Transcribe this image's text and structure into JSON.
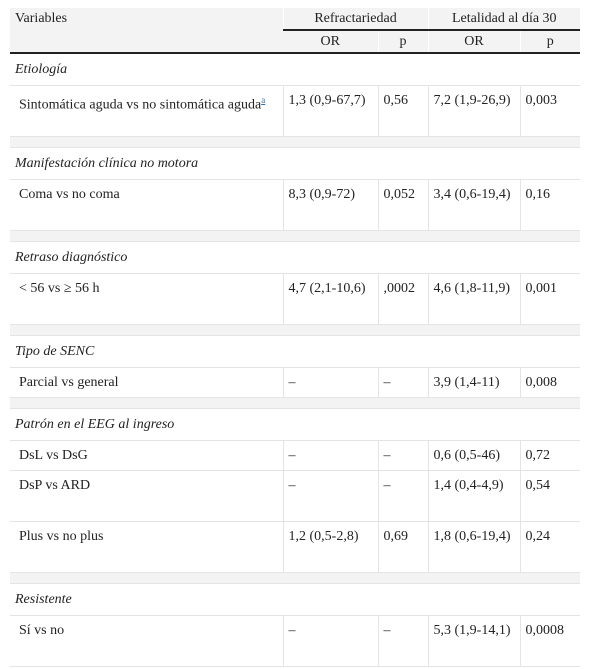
{
  "header": {
    "variables": "Variables",
    "refractariedad": "Refractariedad",
    "letalidad": "Letalidad al día 30",
    "sub": [
      "OR",
      "p",
      "OR",
      "p"
    ]
  },
  "sections": [
    {
      "title": "Etiología",
      "rows": [
        {
          "label": "Sintomática aguda vs no sintomática aguda",
          "note": "a",
          "cells": [
            "1,3 (0,9-67,7)",
            "0,56",
            "7,2 (1,9-26,9)",
            "0,003"
          ]
        }
      ]
    },
    {
      "title": "Manifestación clínica no motora",
      "rows": [
        {
          "label": "Coma vs no coma",
          "cells": [
            "8,3 (0,9-72)",
            "0,052",
            "3,4 (0,6-19,4)",
            "0,16"
          ]
        }
      ]
    },
    {
      "title": "Retraso diagnóstico",
      "rows": [
        {
          "label": "< 56 vs ≥ 56 h",
          "cells": [
            "4,7 (2,1-10,6)",
            ",0002",
            "4,6 (1,8-11,9)",
            "0,001"
          ]
        }
      ]
    },
    {
      "title": "Tipo de SENC",
      "rows": [
        {
          "label": "Parcial vs general",
          "cells": [
            "–",
            "–",
            "3,9 (1,4-11)",
            "0,008"
          ]
        }
      ]
    },
    {
      "title": "Patrón en el EEG al ingreso",
      "rows": [
        {
          "label": "DsL vs DsG",
          "cells": [
            "–",
            "–",
            "0,6 (0,5-46)",
            "0,72"
          ]
        },
        {
          "label": "DsP vs ARD",
          "cells": [
            "–",
            "–",
            "1,4 (0,4-4,9)",
            "0,54"
          ]
        },
        {
          "label": "Plus vs no plus",
          "cells": [
            "1,2 (0,5-2,8)",
            "0,69",
            "1,8 (0,6-19,4)",
            "0,24"
          ]
        }
      ]
    },
    {
      "title": "Resistente",
      "rows": [
        {
          "label": "Sí vs no",
          "cells": [
            "–",
            "–",
            "5,3 (1,9-14,1)",
            "0,0008"
          ]
        }
      ]
    }
  ]
}
